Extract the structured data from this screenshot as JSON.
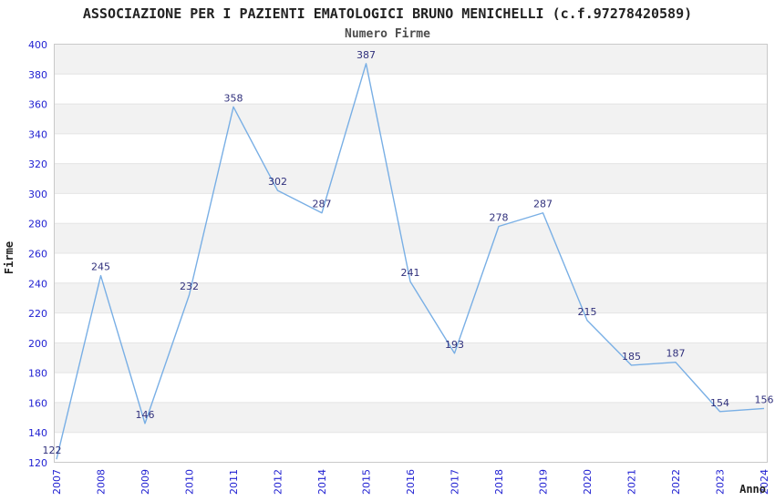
{
  "chart_data": {
    "type": "line",
    "title": "ASSOCIAZIONE PER I PAZIENTI EMATOLOGICI BRUNO MENICHELLI (c.f.97278420589)",
    "subtitle": "Numero Firme",
    "xlabel": "Anno",
    "ylabel": "Firme",
    "categories": [
      "2007",
      "2008",
      "2009",
      "2010",
      "2011",
      "2012",
      "2014",
      "2015",
      "2016",
      "2017",
      "2018",
      "2019",
      "2020",
      "2021",
      "2022",
      "2023",
      "2024"
    ],
    "values": [
      122,
      245,
      146,
      232,
      358,
      302,
      287,
      387,
      241,
      193,
      278,
      287,
      215,
      185,
      187,
      154,
      156
    ],
    "ylim": [
      120,
      400
    ],
    "ytick_step": 20,
    "grid": true,
    "interlaced_bands": true,
    "legend": false,
    "markers": false,
    "colors": {
      "line": "#79afe5",
      "tick_label": "#2222d2",
      "data_label": "#30307c",
      "band": "#f2f2f2",
      "gridline": "#e4e4e4",
      "plot_border": "#c9c9c9",
      "title": "#222222",
      "subtitle": "#4d4d4d",
      "background": "#ffffff"
    }
  }
}
